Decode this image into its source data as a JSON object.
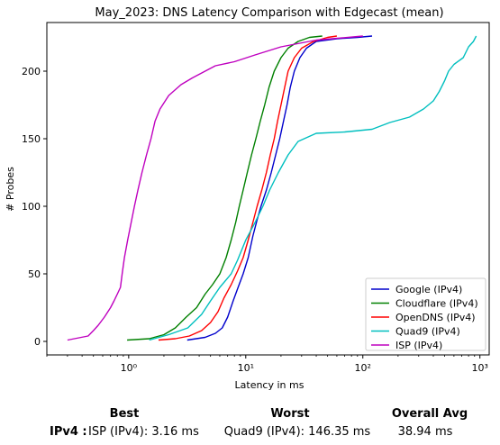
{
  "chart_data": {
    "type": "line",
    "title": "May_2023: DNS Latency Comparison with Edgecast (mean)",
    "xlabel": "Latency in ms",
    "ylabel": "# Probes",
    "xscale": "log",
    "xlim": [
      0.2,
      1200
    ],
    "ylim": [
      -10,
      236
    ],
    "xticks": [
      1,
      10,
      100,
      1000
    ],
    "xtick_labels": [
      "10⁰",
      "10¹",
      "10²",
      "10³"
    ],
    "yticks": [
      0,
      50,
      100,
      150,
      200
    ],
    "grid": false,
    "legend_position": "bottom-right",
    "series": [
      {
        "name": "Google (IPv4)",
        "color": "#0000cc",
        "points": [
          [
            3.16,
            1
          ],
          [
            4.5,
            3
          ],
          [
            5.5,
            6
          ],
          [
            6.3,
            10
          ],
          [
            7.0,
            18
          ],
          [
            7.8,
            30
          ],
          [
            8.6,
            40
          ],
          [
            9.5,
            50
          ],
          [
            10.5,
            62
          ],
          [
            11.5,
            78
          ],
          [
            12.5,
            90
          ],
          [
            13.5,
            100
          ],
          [
            15,
            112
          ],
          [
            16.5,
            125
          ],
          [
            18,
            138
          ],
          [
            19.5,
            150
          ],
          [
            21,
            163
          ],
          [
            22.5,
            175
          ],
          [
            24,
            188
          ],
          [
            26,
            200
          ],
          [
            29,
            210
          ],
          [
            33,
            217
          ],
          [
            40,
            222
          ],
          [
            60,
            224
          ],
          [
            90,
            225
          ],
          [
            120,
            226
          ]
        ]
      },
      {
        "name": "Cloudflare (IPv4)",
        "color": "#008000",
        "points": [
          [
            0.97,
            1
          ],
          [
            1.5,
            2
          ],
          [
            2.0,
            5
          ],
          [
            2.5,
            10
          ],
          [
            3.1,
            18
          ],
          [
            3.8,
            25
          ],
          [
            4.5,
            35
          ],
          [
            5.2,
            42
          ],
          [
            6.0,
            50
          ],
          [
            6.8,
            62
          ],
          [
            7.5,
            75
          ],
          [
            8.2,
            88
          ],
          [
            8.8,
            100
          ],
          [
            9.5,
            112
          ],
          [
            10.3,
            125
          ],
          [
            11.2,
            138
          ],
          [
            12.2,
            150
          ],
          [
            13.3,
            163
          ],
          [
            14.5,
            175
          ],
          [
            15.8,
            188
          ],
          [
            17.5,
            200
          ],
          [
            20,
            210
          ],
          [
            23,
            217
          ],
          [
            28,
            222
          ],
          [
            35,
            225
          ],
          [
            45,
            226
          ]
        ]
      },
      {
        "name": "OpenDNS (IPv4)",
        "color": "#ff0000",
        "points": [
          [
            1.8,
            1
          ],
          [
            2.5,
            2
          ],
          [
            3.3,
            4
          ],
          [
            4.2,
            8
          ],
          [
            5.0,
            14
          ],
          [
            5.8,
            22
          ],
          [
            6.5,
            32
          ],
          [
            7.5,
            42
          ],
          [
            8.5,
            52
          ],
          [
            9.5,
            62
          ],
          [
            10.5,
            75
          ],
          [
            11.5,
            88
          ],
          [
            12.5,
            100
          ],
          [
            13.7,
            112
          ],
          [
            15,
            125
          ],
          [
            16.2,
            138
          ],
          [
            17.5,
            150
          ],
          [
            18.7,
            163
          ],
          [
            20,
            175
          ],
          [
            21.5,
            188
          ],
          [
            23,
            200
          ],
          [
            26,
            210
          ],
          [
            30,
            217
          ],
          [
            38,
            222
          ],
          [
            50,
            225
          ],
          [
            60,
            226
          ]
        ]
      },
      {
        "name": "Quad9 (IPv4)",
        "color": "#00bfbf",
        "points": [
          [
            1.5,
            1
          ],
          [
            2.2,
            5
          ],
          [
            3.2,
            10
          ],
          [
            4.2,
            20
          ],
          [
            5.0,
            30
          ],
          [
            6.0,
            40
          ],
          [
            7.5,
            50
          ],
          [
            8.5,
            60
          ],
          [
            10,
            75
          ],
          [
            12,
            88
          ],
          [
            14,
            100
          ],
          [
            16,
            112
          ],
          [
            19,
            125
          ],
          [
            23,
            138
          ],
          [
            28,
            148
          ],
          [
            40,
            154
          ],
          [
            70,
            155
          ],
          [
            120,
            157
          ],
          [
            170,
            162
          ],
          [
            250,
            166
          ],
          [
            330,
            172
          ],
          [
            400,
            178
          ],
          [
            450,
            185
          ],
          [
            500,
            193
          ],
          [
            540,
            200
          ],
          [
            600,
            205
          ],
          [
            720,
            210
          ],
          [
            800,
            218
          ],
          [
            880,
            222
          ],
          [
            930,
            226
          ]
        ]
      },
      {
        "name": "ISP (IPv4)",
        "color": "#bf00bf",
        "points": [
          [
            0.3,
            1
          ],
          [
            0.45,
            4
          ],
          [
            0.5,
            8
          ],
          [
            0.55,
            12
          ],
          [
            0.62,
            18
          ],
          [
            0.7,
            25
          ],
          [
            0.75,
            30
          ],
          [
            0.8,
            35
          ],
          [
            0.85,
            40
          ],
          [
            0.88,
            50
          ],
          [
            0.92,
            62
          ],
          [
            0.98,
            75
          ],
          [
            1.05,
            88
          ],
          [
            1.12,
            100
          ],
          [
            1.2,
            112
          ],
          [
            1.3,
            125
          ],
          [
            1.42,
            138
          ],
          [
            1.55,
            150
          ],
          [
            1.68,
            163
          ],
          [
            1.85,
            172
          ],
          [
            2.2,
            182
          ],
          [
            2.8,
            190
          ],
          [
            3.5,
            195
          ],
          [
            4.5,
            200
          ],
          [
            5.5,
            204
          ],
          [
            8,
            207
          ],
          [
            12,
            212
          ],
          [
            20,
            218
          ],
          [
            40,
            223
          ],
          [
            100,
            226
          ]
        ]
      }
    ]
  },
  "summary": {
    "best_header": "Best",
    "worst_header": "Worst",
    "avg_header": "Overall Avg",
    "row_label": "IPv4 :",
    "best_value": "ISP (IPv4): 3.16 ms",
    "worst_value": "Quad9 (IPv4): 146.35 ms",
    "avg_value": "38.94 ms"
  }
}
